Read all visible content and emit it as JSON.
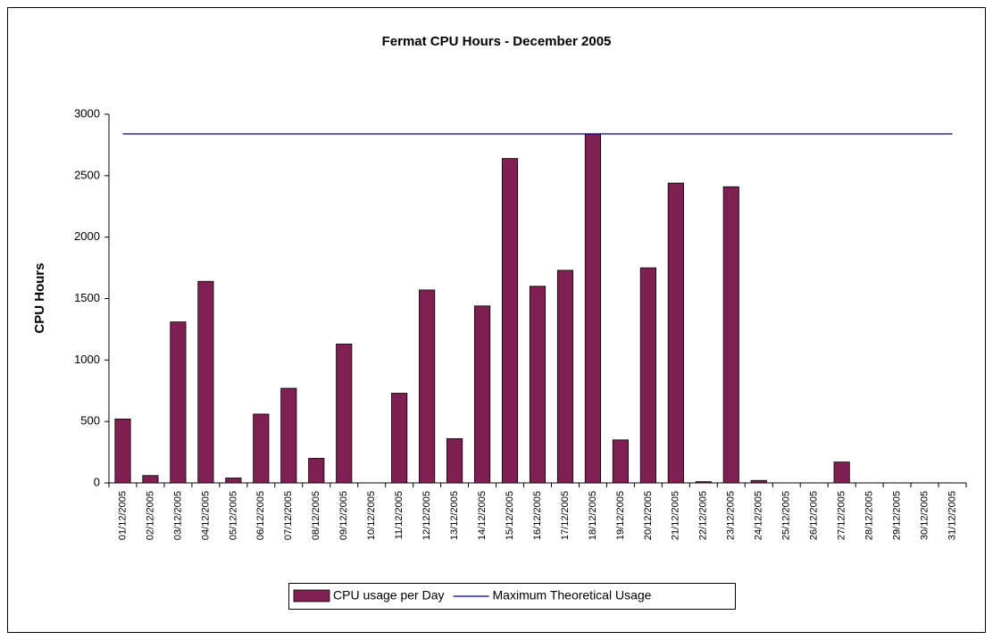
{
  "chart_data": {
    "type": "bar",
    "title": "Fermat CPU Hours - December 2005",
    "y_label": "CPU Hours",
    "categories": [
      "01/12/2005",
      "02/12/2005",
      "03/12/2005",
      "04/12/2005",
      "05/12/2005",
      "06/12/2005",
      "07/12/2005",
      "08/12/2005",
      "09/12/2005",
      "10/12/2005",
      "11/12/2005",
      "12/12/2005",
      "13/12/2005",
      "14/12/2005",
      "15/12/2005",
      "16/12/2005",
      "17/12/2005",
      "18/12/2005",
      "19/12/2005",
      "20/12/2005",
      "21/12/2005",
      "22/12/2005",
      "23/12/2005",
      "24/12/2005",
      "25/12/2005",
      "26/12/2005",
      "27/12/2005",
      "28/12/2005",
      "29/12/2005",
      "30/12/2005",
      "31/12/2005"
    ],
    "series": [
      {
        "name": "CPU usage per Day",
        "type": "bar",
        "color": "#7f1f52",
        "values": [
          520,
          60,
          1310,
          1640,
          40,
          560,
          770,
          200,
          1130,
          0,
          730,
          1570,
          360,
          1440,
          2640,
          1600,
          1730,
          2840,
          350,
          1750,
          2440,
          10,
          2410,
          20,
          0,
          0,
          170,
          0,
          0,
          0,
          0
        ]
      },
      {
        "name": "Maximum Theoretical Usage",
        "type": "line",
        "color": "#000080",
        "values": [
          2840,
          2840,
          2840,
          2840,
          2840,
          2840,
          2840,
          2840,
          2840,
          2840,
          2840,
          2840,
          2840,
          2840,
          2840,
          2840,
          2840,
          2840,
          2840,
          2840,
          2840,
          2840,
          2840,
          2840,
          2840,
          2840,
          2840,
          2840,
          2840,
          2840,
          2840
        ]
      }
    ],
    "ylim": [
      0,
      3000
    ],
    "yticks": [
      0,
      500,
      1000,
      1500,
      2000,
      2500,
      3000
    ],
    "grid": false,
    "legend": "bottom"
  }
}
